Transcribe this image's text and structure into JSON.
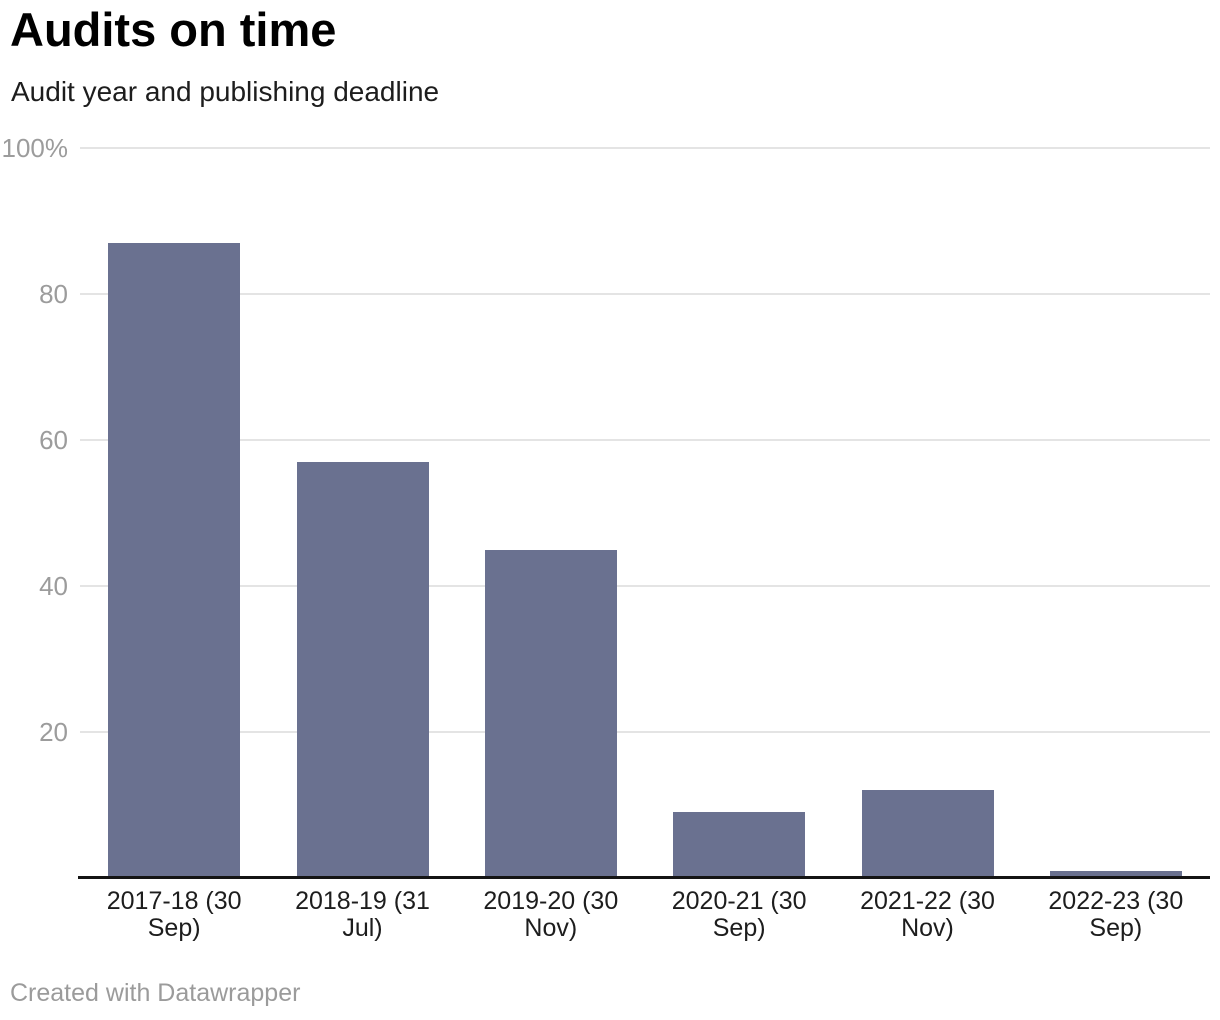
{
  "header": {
    "title": "Audits on time",
    "subtitle": "Audit year and publishing deadline"
  },
  "footer": {
    "attribution": "Created with Datawrapper"
  },
  "chart_data": {
    "type": "bar",
    "title": "Audits on time",
    "subtitle": "Audit year and publishing deadline",
    "categories": [
      "2017-18 (30 Sep)",
      "2018-19 (31 Jul)",
      "2019-20 (30 Nov)",
      "2020-21 (30 Sep)",
      "2021-22 (30 Nov)",
      "2022-23 (30 Sep)"
    ],
    "values": [
      87,
      57,
      45,
      9,
      12,
      1
    ],
    "unit": "%",
    "xlabel": "",
    "ylabel": "",
    "ylim": [
      0,
      100
    ],
    "ytick_values": [
      100,
      80,
      60,
      40,
      20
    ],
    "ytick_labels": [
      "100%",
      "80",
      "60",
      "40",
      "20"
    ],
    "grid": "horizontal",
    "legend_position": "none",
    "colors": {
      "bar": "#6a7190",
      "gridline": "#e4e4e4",
      "axis_tick_text": "#9c9c9c",
      "category_text": "#1d1d1d",
      "baseline": "#141414",
      "title_text": "#000000",
      "subtitle_text": "#1d1d1d",
      "attribution_text": "#9b9b9b",
      "background": "#ffffff"
    }
  }
}
